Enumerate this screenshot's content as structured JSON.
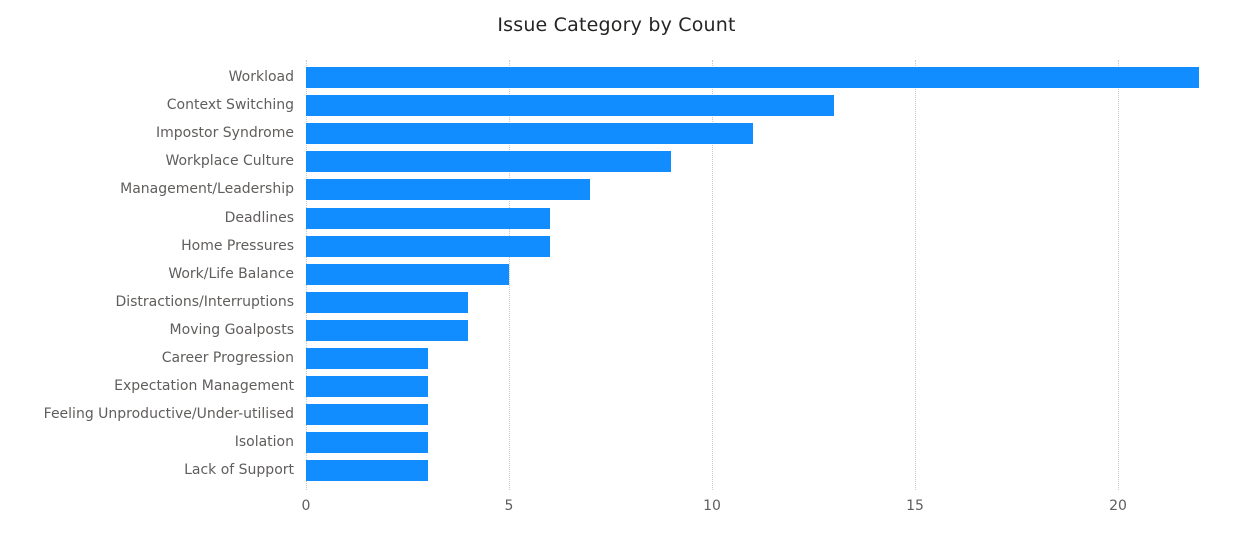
{
  "chart_data": {
    "type": "bar",
    "orientation": "horizontal",
    "title": "Issue Category by Count",
    "xlabel": "",
    "ylabel": "",
    "categories": [
      "Workload",
      "Context Switching",
      "Impostor Syndrome",
      "Workplace Culture",
      "Management/Leadership",
      "Deadlines",
      "Home Pressures",
      "Work/Life Balance",
      "Distractions/Interruptions",
      "Moving Goalposts",
      "Career Progression",
      "Expectation Management",
      "Feeling Unproductive/Under-utilised",
      "Isolation",
      "Lack of Support"
    ],
    "values": [
      22,
      13,
      11,
      9,
      7,
      6,
      6,
      5,
      4,
      4,
      3,
      3,
      3,
      3,
      3
    ],
    "xlim": [
      0,
      22.5
    ],
    "xticks": [
      0,
      5,
      10,
      15,
      20
    ],
    "grid": true,
    "legend": null,
    "bar_color": "#118dff"
  },
  "title": "Issue Category by Count",
  "ticks": [
    "0",
    "5",
    "10",
    "15",
    "20"
  ]
}
